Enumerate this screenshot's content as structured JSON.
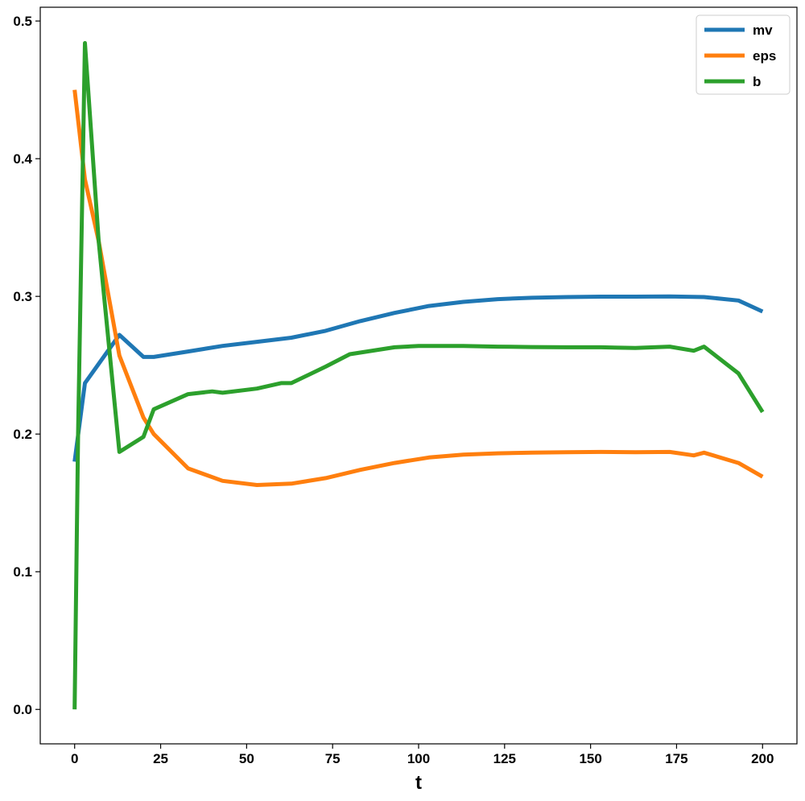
{
  "chart_data": {
    "type": "line",
    "title": "",
    "xlabel": "t",
    "ylabel": "",
    "xlim": [
      -10,
      210
    ],
    "ylim": [
      -0.025,
      0.51
    ],
    "xticks": [
      0,
      25,
      50,
      75,
      100,
      125,
      150,
      175,
      200
    ],
    "xtick_labels": [
      "0",
      "25",
      "50",
      "75",
      "100",
      "125",
      "150",
      "175",
      "200"
    ],
    "yticks": [
      0.0,
      0.1,
      0.2,
      0.3,
      0.4,
      0.5
    ],
    "ytick_labels": [
      "0.0",
      "0.1",
      "0.2",
      "0.3",
      "0.4",
      "0.5"
    ],
    "grid": false,
    "legend_position": "top-right",
    "series": [
      {
        "name": "mv",
        "color": "#1f77b4",
        "points": [
          [
            0,
            0.18
          ],
          [
            3,
            0.237
          ],
          [
            7,
            0.251
          ],
          [
            13,
            0.272
          ],
          [
            20,
            0.256
          ],
          [
            23,
            0.256
          ],
          [
            33,
            0.26
          ],
          [
            43,
            0.264
          ],
          [
            53,
            0.267
          ],
          [
            63,
            0.27
          ],
          [
            73,
            0.275
          ],
          [
            83,
            0.282
          ],
          [
            93,
            0.288
          ],
          [
            103,
            0.293
          ],
          [
            113,
            0.296
          ],
          [
            123,
            0.298
          ],
          [
            133,
            0.299
          ],
          [
            143,
            0.2995
          ],
          [
            153,
            0.2998
          ],
          [
            163,
            0.2998
          ],
          [
            173,
            0.3
          ],
          [
            183,
            0.2995
          ],
          [
            193,
            0.297
          ],
          [
            200,
            0.289
          ]
        ]
      },
      {
        "name": "eps",
        "color": "#ff7f0e",
        "points": [
          [
            0,
            0.45
          ],
          [
            3,
            0.385
          ],
          [
            7,
            0.34
          ],
          [
            13,
            0.257
          ],
          [
            20,
            0.212
          ],
          [
            23,
            0.2
          ],
          [
            33,
            0.175
          ],
          [
            43,
            0.166
          ],
          [
            53,
            0.163
          ],
          [
            63,
            0.164
          ],
          [
            73,
            0.168
          ],
          [
            83,
            0.174
          ],
          [
            93,
            0.179
          ],
          [
            103,
            0.183
          ],
          [
            113,
            0.185
          ],
          [
            123,
            0.186
          ],
          [
            133,
            0.1865
          ],
          [
            143,
            0.1868
          ],
          [
            153,
            0.187
          ],
          [
            163,
            0.1868
          ],
          [
            173,
            0.187
          ],
          [
            180,
            0.1845
          ],
          [
            183,
            0.1865
          ],
          [
            193,
            0.179
          ],
          [
            200,
            0.169
          ]
        ]
      },
      {
        "name": "b",
        "color": "#2ca02c",
        "points": [
          [
            0,
            0.0
          ],
          [
            1,
            0.2
          ],
          [
            3,
            0.484
          ],
          [
            7,
            0.34
          ],
          [
            13,
            0.187
          ],
          [
            20,
            0.198
          ],
          [
            23,
            0.218
          ],
          [
            33,
            0.229
          ],
          [
            40,
            0.231
          ],
          [
            43,
            0.23
          ],
          [
            53,
            0.233
          ],
          [
            60,
            0.237
          ],
          [
            63,
            0.237
          ],
          [
            73,
            0.249
          ],
          [
            80,
            0.258
          ],
          [
            93,
            0.263
          ],
          [
            100,
            0.264
          ],
          [
            113,
            0.264
          ],
          [
            123,
            0.2635
          ],
          [
            133,
            0.2632
          ],
          [
            143,
            0.263
          ],
          [
            153,
            0.263
          ],
          [
            163,
            0.2625
          ],
          [
            173,
            0.2635
          ],
          [
            180,
            0.2605
          ],
          [
            183,
            0.2635
          ],
          [
            193,
            0.244
          ],
          [
            200,
            0.216
          ]
        ]
      }
    ]
  }
}
